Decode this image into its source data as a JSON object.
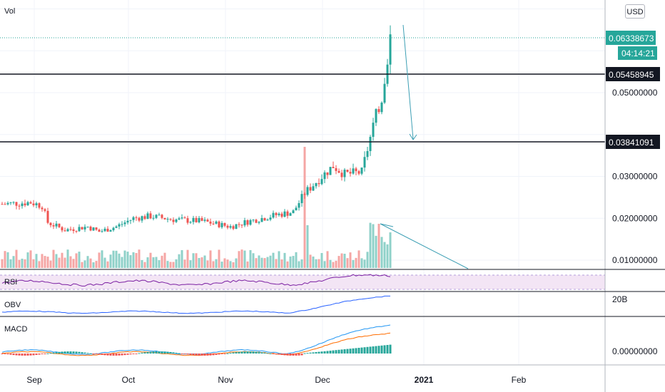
{
  "chart_data": {
    "type": "candlestick",
    "x_ticks": [
      "Sep",
      "Oct",
      "Nov",
      "Dec",
      "2021",
      "Feb"
    ],
    "price_ticks": [
      "0.01000000",
      "0.02000000",
      "0.03000000",
      "0.05000000"
    ],
    "price_ylim": [
      0.006,
      0.073
    ],
    "price_tick_values": [
      0.01,
      0.02,
      0.03,
      0.05
    ],
    "hidden_tick_values": [
      0.04,
      0.06,
      0.07
    ],
    "current_price": {
      "label": "0.06338673",
      "value": 0.06338673,
      "countdown": "04:14:21"
    },
    "horizontal_levels": [
      {
        "label": "0.05458945",
        "value": 0.05458945
      },
      {
        "label": "0.03841091",
        "value": 0.03841091
      }
    ],
    "currency": "USD",
    "volume_label": "Vol",
    "indicators": {
      "rsi": {
        "label": "RSI"
      },
      "obv": {
        "label": "OBV",
        "tick": "20B"
      },
      "macd": {
        "label": "MACD",
        "tick": "0.00000000"
      }
    },
    "colors": {
      "up": "#26a69a",
      "down": "#ef5350",
      "up_vol": "#8fd1c9",
      "down_vol": "#f5a6a4",
      "drawing": "#3d9fb4",
      "rsi": "#7b1fa2",
      "obv": "#2962ff",
      "macd": "#2196f3",
      "signal": "#ff6d00"
    },
    "grid": true
  }
}
